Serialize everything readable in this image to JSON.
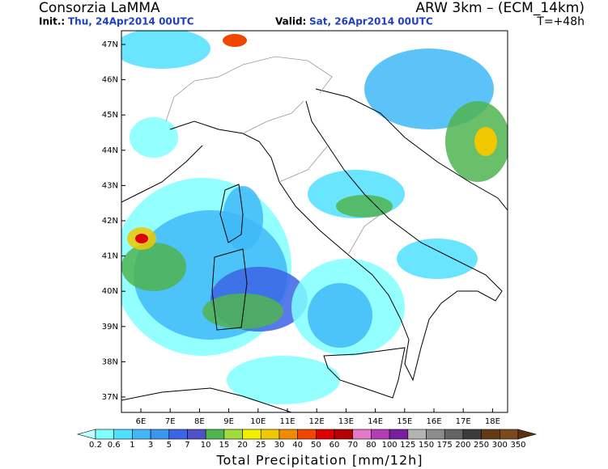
{
  "header": {
    "title": "Consorzia LaMMA",
    "model": "ARW 3km – (ECM_14km)",
    "init_label": "Init.:",
    "init_value": "Thu, 24Apr2014 00UTC",
    "valid_label": "Valid:",
    "valid_value": "Sat, 26Apr2014 00UTC",
    "lead_time": "T=+48h"
  },
  "axes": {
    "lat_labels": [
      "47N",
      "46N",
      "45N",
      "44N",
      "43N",
      "42N",
      "41N",
      "40N",
      "39N",
      "38N",
      "37N"
    ],
    "lon_labels": [
      "6E",
      "7E",
      "8E",
      "9E",
      "10E",
      "11E",
      "12E",
      "13E",
      "14E",
      "15E",
      "16E",
      "17E",
      "18E"
    ]
  },
  "colorbar": {
    "title": "Total Precipitation [mm/12h]",
    "labels": [
      "0.2",
      "0.6",
      "1",
      "3",
      "5",
      "7",
      "10",
      "15",
      "20",
      "25",
      "30",
      "40",
      "50",
      "60",
      "70",
      "80",
      "100",
      "125",
      "150",
      "175",
      "200",
      "250",
      "300",
      "350"
    ],
    "colors": [
      "#c0ffff",
      "#80ffff",
      "#50e0ff",
      "#40b8f8",
      "#3c96f0",
      "#3c64e6",
      "#5050c8",
      "#50b450",
      "#a0dc3c",
      "#f0f000",
      "#f0c800",
      "#f08c00",
      "#f04600",
      "#e00000",
      "#b40000",
      "#e678c8",
      "#b43cb4",
      "#781ea0",
      "#b4b4b4",
      "#8c8c8c",
      "#646464",
      "#3c3c3c",
      "#643c14",
      "#7a4a1c",
      "#5a320c"
    ]
  }
}
